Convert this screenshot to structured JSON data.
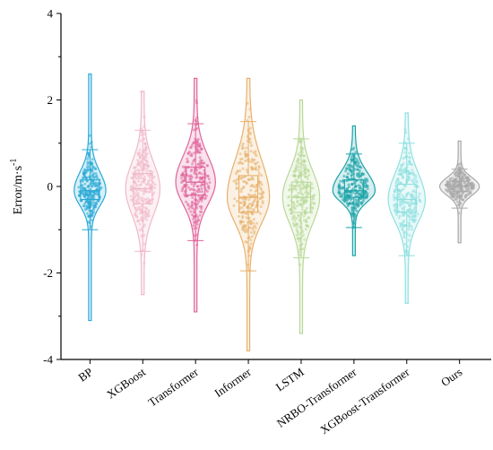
{
  "chart_data": {
    "type": "violin",
    "ylabel": "Error/m·s",
    "ylabel_sup": "-1",
    "ylim": [
      -4,
      4
    ],
    "yticks": [
      -4,
      -2,
      0,
      2,
      4
    ],
    "categories": [
      "BP",
      "XGBoost",
      "Transformer",
      "Informer",
      "LSTM",
      "NRBO-Transformer",
      "XGBoost-Transformer",
      "Ours"
    ],
    "series": [
      {
        "category": "BP",
        "color": "#29a9d6",
        "min": -3.1,
        "max": 2.6,
        "whisker_low": -1.0,
        "whisker_high": 0.85,
        "q1": -0.3,
        "median": -0.1,
        "q3": 0.15,
        "violin_width": 0.55
      },
      {
        "category": "XGBoost",
        "color": "#f0b8c8",
        "min": -2.5,
        "max": 2.2,
        "whisker_low": -1.5,
        "whisker_high": 1.3,
        "q1": -0.4,
        "median": -0.05,
        "q3": 0.3,
        "violin_width": 0.6
      },
      {
        "category": "Transformer",
        "color": "#e0649a",
        "min": -2.9,
        "max": 2.5,
        "whisker_low": -1.25,
        "whisker_high": 1.45,
        "q1": -0.2,
        "median": 0.1,
        "q3": 0.45,
        "violin_width": 0.7
      },
      {
        "category": "Informer",
        "color": "#e8b06a",
        "min": -3.8,
        "max": 2.5,
        "whisker_low": -1.95,
        "whisker_high": 1.5,
        "q1": -0.6,
        "median": -0.25,
        "q3": 0.25,
        "violin_width": 0.75
      },
      {
        "category": "LSTM",
        "color": "#b8d898",
        "min": -3.4,
        "max": 2.0,
        "whisker_low": -1.65,
        "whisker_high": 1.1,
        "q1": -0.6,
        "median": -0.25,
        "q3": 0.1,
        "violin_width": 0.65
      },
      {
        "category": "NRBO-Transformer",
        "color": "#1aa3a8",
        "min": -1.6,
        "max": 1.4,
        "whisker_low": -0.95,
        "whisker_high": 0.75,
        "q1": -0.25,
        "median": -0.1,
        "q3": 0.15,
        "violin_width": 0.75
      },
      {
        "category": "XGBoost-Transformer",
        "color": "#8ee0e0",
        "min": -2.7,
        "max": 1.7,
        "whisker_low": -1.6,
        "whisker_high": 1.0,
        "q1": -0.6,
        "median": -0.3,
        "q3": 0.05,
        "violin_width": 0.65
      },
      {
        "category": "Ours",
        "color": "#a8a8a8",
        "min": -1.3,
        "max": 1.05,
        "whisker_low": -0.5,
        "whisker_high": 0.4,
        "q1": -0.12,
        "median": 0.0,
        "q3": 0.12,
        "violin_width": 0.7
      }
    ]
  }
}
